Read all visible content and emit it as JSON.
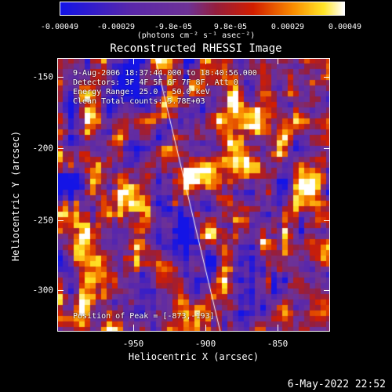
{
  "colorbar": {
    "ticks": [
      "-0.00049",
      "-0.00029",
      "-9.8e-05",
      "9.8e-05",
      "0.00029",
      "0.00049"
    ],
    "unit": "(photons cm⁻² s⁻¹ asec⁻²)"
  },
  "title": "Reconstructed RHESSI Image",
  "annotations": {
    "time": "9-Aug-2006 18:37:44.000 to 18:40:56.000",
    "detectors": "Detectors: 3F 4F 5F 6F 7F 8F, Att 0",
    "energy": "Energy Range: 25.0 - 50.0 keV",
    "method": "Clean    Total counts: 5.78E+03",
    "peak": "Position of Peak = [-873,-193]"
  },
  "axes": {
    "xlabel": "Heliocentric X (arcsec)",
    "ylabel": "Heliocentric Y (arcsec)",
    "xticks": [
      "-950",
      "-900",
      "-850"
    ],
    "yticks": [
      "-150",
      "-200",
      "-250",
      "-300"
    ]
  },
  "timestamp": "6-May-2022 22:52",
  "chart_data": {
    "type": "heatmap",
    "title": "Reconstructed RHESSI Image",
    "xlabel": "Heliocentric X (arcsec)",
    "ylabel": "Heliocentric Y (arcsec)",
    "xlim": [
      -995,
      -815
    ],
    "ylim": [
      -330,
      -140
    ],
    "colorbar_range": [
      -0.00049,
      0.00049
    ],
    "colormap": "blue-purple-red-yellow-white",
    "peak_position": [
      -873,
      -193
    ]
  }
}
